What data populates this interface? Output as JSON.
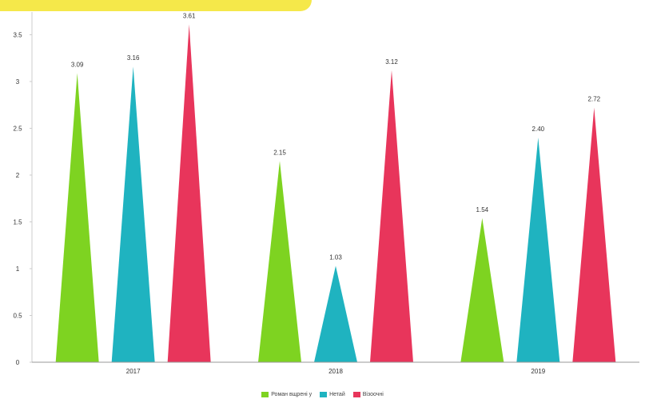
{
  "chart_data": {
    "type": "bar",
    "categories": [
      "2017",
      "2018",
      "2019"
    ],
    "series": [
      {
        "name": "Роман вщрені у",
        "color": "#7ed321",
        "values": [
          3.09,
          2.15,
          1.54
        ]
      },
      {
        "name": "Нетай",
        "color": "#1fb3c0",
        "values": [
          3.16,
          1.03,
          2.4
        ]
      },
      {
        "name": "Вiзоочні",
        "color": "#e8355b",
        "values": [
          3.61,
          3.12,
          2.72
        ]
      }
    ],
    "data_labels": [
      [
        "3.09",
        "3.16",
        "3.61"
      ],
      [
        "2.15",
        "1.03",
        "3.12"
      ],
      [
        "1.54",
        "2.40",
        "2.72"
      ]
    ],
    "yticks": [
      "0",
      "0.5",
      "1",
      "1.5",
      "2",
      "2.5",
      "3",
      "3.5"
    ],
    "ylim": [
      0,
      3.7
    ],
    "grid": false,
    "legend_position": "bottom-center",
    "title": "",
    "xlabel": "",
    "ylabel": ""
  },
  "banner_color": "#f5e84a"
}
